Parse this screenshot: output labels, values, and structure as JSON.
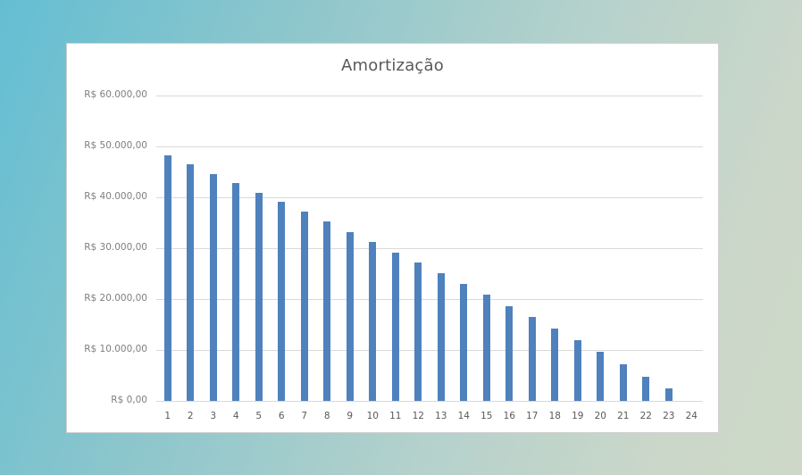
{
  "chart_data": {
    "type": "bar",
    "title": "Amortização",
    "xlabel": "",
    "ylabel": "",
    "ylim": [
      0,
      60000
    ],
    "grid": true,
    "legend": null,
    "categories": [
      "1",
      "2",
      "3",
      "4",
      "5",
      "6",
      "7",
      "8",
      "9",
      "10",
      "11",
      "12",
      "13",
      "14",
      "15",
      "16",
      "17",
      "18",
      "19",
      "20",
      "21",
      "22",
      "23",
      "24"
    ],
    "values": [
      48250,
      46490,
      44560,
      42810,
      40880,
      39120,
      37190,
      35260,
      33160,
      31230,
      29120,
      27190,
      25090,
      22980,
      20880,
      18600,
      16490,
      14210,
      11930,
      9650,
      7190,
      4740,
      2460,
      0
    ],
    "y_ticks": [
      {
        "value": 60000,
        "label": "R$ 60.000,00"
      },
      {
        "value": 50000,
        "label": "R$ 50.000,00"
      },
      {
        "value": 40000,
        "label": "R$ 40.000,00"
      },
      {
        "value": 30000,
        "label": "R$ 30.000,00"
      },
      {
        "value": 20000,
        "label": "R$ 20.000,00"
      },
      {
        "value": 10000,
        "label": "R$ 10.000,00"
      },
      {
        "value": 0,
        "label": "R$ 0,00"
      }
    ],
    "colors": {
      "bar": "#4F81BD",
      "grid": "#D9D9D9"
    }
  }
}
